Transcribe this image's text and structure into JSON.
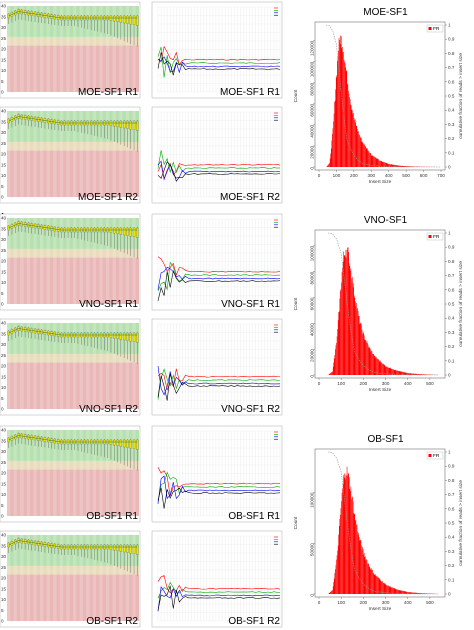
{
  "panel_labels": [
    "a",
    "b",
    "c"
  ],
  "rows": [
    {
      "label": "a",
      "quality_plots": [
        {
          "label": "MOE-SF1 R1"
        },
        {
          "label": "MOE-SF1 R2"
        }
      ],
      "content_plots": [
        {
          "label": "MOE-SF1 R1"
        },
        {
          "label": "MOE-SF1 R2"
        }
      ]
    },
    {
      "label": "b",
      "quality_plots": [
        {
          "label": "VNO-SF1 R1"
        },
        {
          "label": "VNO-SF1 R2"
        }
      ],
      "content_plots": [
        {
          "label": "VNO-SF1 R1"
        },
        {
          "label": "VNO-SF1 R2"
        }
      ]
    },
    {
      "label": "c",
      "quality_plots": [
        {
          "label": "OB-SF1 R1"
        },
        {
          "label": "OB-SF1 R2"
        }
      ],
      "content_plots": [
        {
          "label": "OB-SF1 R1"
        },
        {
          "label": "OB-SF1 R2"
        }
      ]
    }
  ],
  "colors": {
    "quality_good": "#b7e0b0",
    "quality_mid": "#e9dcbc",
    "quality_bad": "#eab7b7",
    "box": "#f2e600",
    "median_line": "#2d7a2d",
    "histogram": "#ff0000",
    "cumulative": "#999999",
    "content_lines": [
      "#ff0000",
      "#00aa00",
      "#0000ff",
      "#000000"
    ]
  },
  "chart_data": [
    {
      "type": "bar",
      "title": "MOE-SF1",
      "xlabel": "Insert Size",
      "ylabel": "Count",
      "y2label": "cumulative fraction of reads > insert size",
      "legend": [
        "FR"
      ],
      "legend_position": "top-right",
      "xlim": [
        0,
        700
      ],
      "xticks": [
        0,
        100,
        200,
        300,
        400,
        500,
        600,
        700
      ],
      "ylim": [
        0,
        135000
      ],
      "yticks": [
        0,
        20000,
        40000,
        60000,
        80000,
        100000,
        120000
      ],
      "y2ticks": [
        0,
        0.1,
        0.2,
        0.3,
        0.4,
        0.5,
        0.6,
        0.7,
        0.8,
        0.9,
        1
      ],
      "x": [
        40,
        60,
        80,
        100,
        110,
        120,
        130,
        140,
        150,
        160,
        180,
        200,
        225,
        250,
        300,
        350,
        400,
        450,
        500,
        550,
        600,
        650,
        700
      ],
      "values": [
        0,
        4000,
        40000,
        95000,
        118000,
        128000,
        125000,
        115000,
        100000,
        88000,
        65000,
        48000,
        34000,
        24000,
        12000,
        6000,
        3000,
        1500,
        800,
        400,
        200,
        100,
        0
      ]
    },
    {
      "type": "bar",
      "title": "VNO-SF1",
      "xlabel": "Insert Size",
      "ylabel": "Count",
      "y2label": "cumulative fraction of reads > insert size",
      "legend": [
        "FR"
      ],
      "legend_position": "top-right",
      "xlim": [
        0,
        550
      ],
      "xticks": [
        0,
        100,
        200,
        300,
        400,
        500
      ],
      "ylim": [
        0,
        110000
      ],
      "yticks": [
        0,
        20000,
        40000,
        60000,
        80000,
        100000
      ],
      "y2ticks": [
        0,
        0.1,
        0.2,
        0.3,
        0.4,
        0.5,
        0.6,
        0.7,
        0.8,
        0.9,
        1
      ],
      "x": [
        40,
        60,
        80,
        100,
        110,
        120,
        130,
        140,
        150,
        160,
        180,
        200,
        225,
        250,
        300,
        350,
        400,
        450,
        500,
        540
      ],
      "values": [
        0,
        3000,
        30000,
        78000,
        95000,
        102000,
        98000,
        88000,
        76000,
        64000,
        45000,
        32000,
        22000,
        15000,
        7000,
        3500,
        1500,
        700,
        300,
        0
      ]
    },
    {
      "type": "bar",
      "title": "OB-SF1",
      "xlabel": "Insert Size",
      "ylabel": "Count",
      "y2label": "cumulative fraction of reads > insert size",
      "legend": [
        "FR"
      ],
      "legend_position": "top-right",
      "xlim": [
        0,
        550
      ],
      "xticks": [
        0,
        100,
        200,
        300,
        400,
        500
      ],
      "ylim": [
        0,
        140000
      ],
      "yticks": [
        0,
        50000,
        100000
      ],
      "y2ticks": [
        0,
        0.1,
        0.2,
        0.3,
        0.4,
        0.5,
        0.6,
        0.7,
        0.8,
        0.9,
        1
      ],
      "x": [
        40,
        60,
        80,
        100,
        110,
        120,
        130,
        140,
        150,
        160,
        180,
        200,
        225,
        250,
        300,
        350,
        400,
        450,
        500,
        540
      ],
      "values": [
        0,
        4000,
        38000,
        95000,
        118000,
        128000,
        122000,
        110000,
        96000,
        80000,
        58000,
        42000,
        29000,
        20000,
        9500,
        4500,
        2000,
        900,
        400,
        0
      ]
    }
  ]
}
